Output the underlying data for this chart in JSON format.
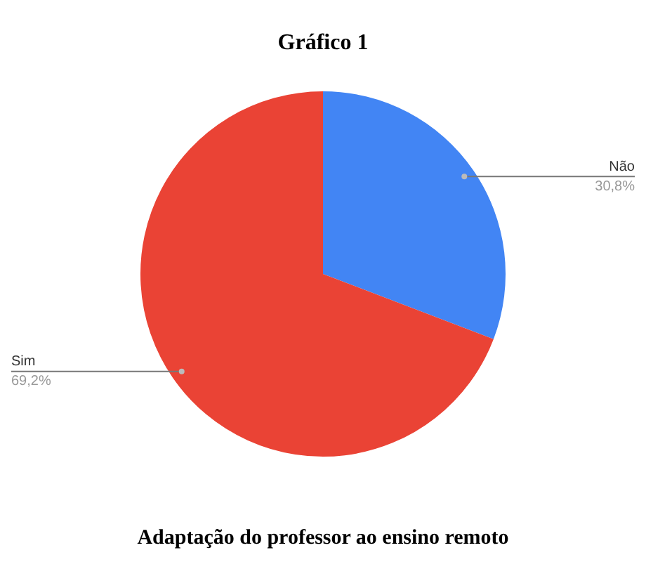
{
  "chart_data": {
    "type": "pie",
    "title": "Gráfico 1",
    "annotations": [
      "Adaptação do professor ao ensino remoto"
    ],
    "categories": [
      "Não",
      "Sim"
    ],
    "values": [
      30.8,
      69.2
    ],
    "value_labels": [
      "30,8%",
      "69,2%"
    ],
    "colors": [
      "#4285f4",
      "#ea4335"
    ],
    "legend": false
  }
}
